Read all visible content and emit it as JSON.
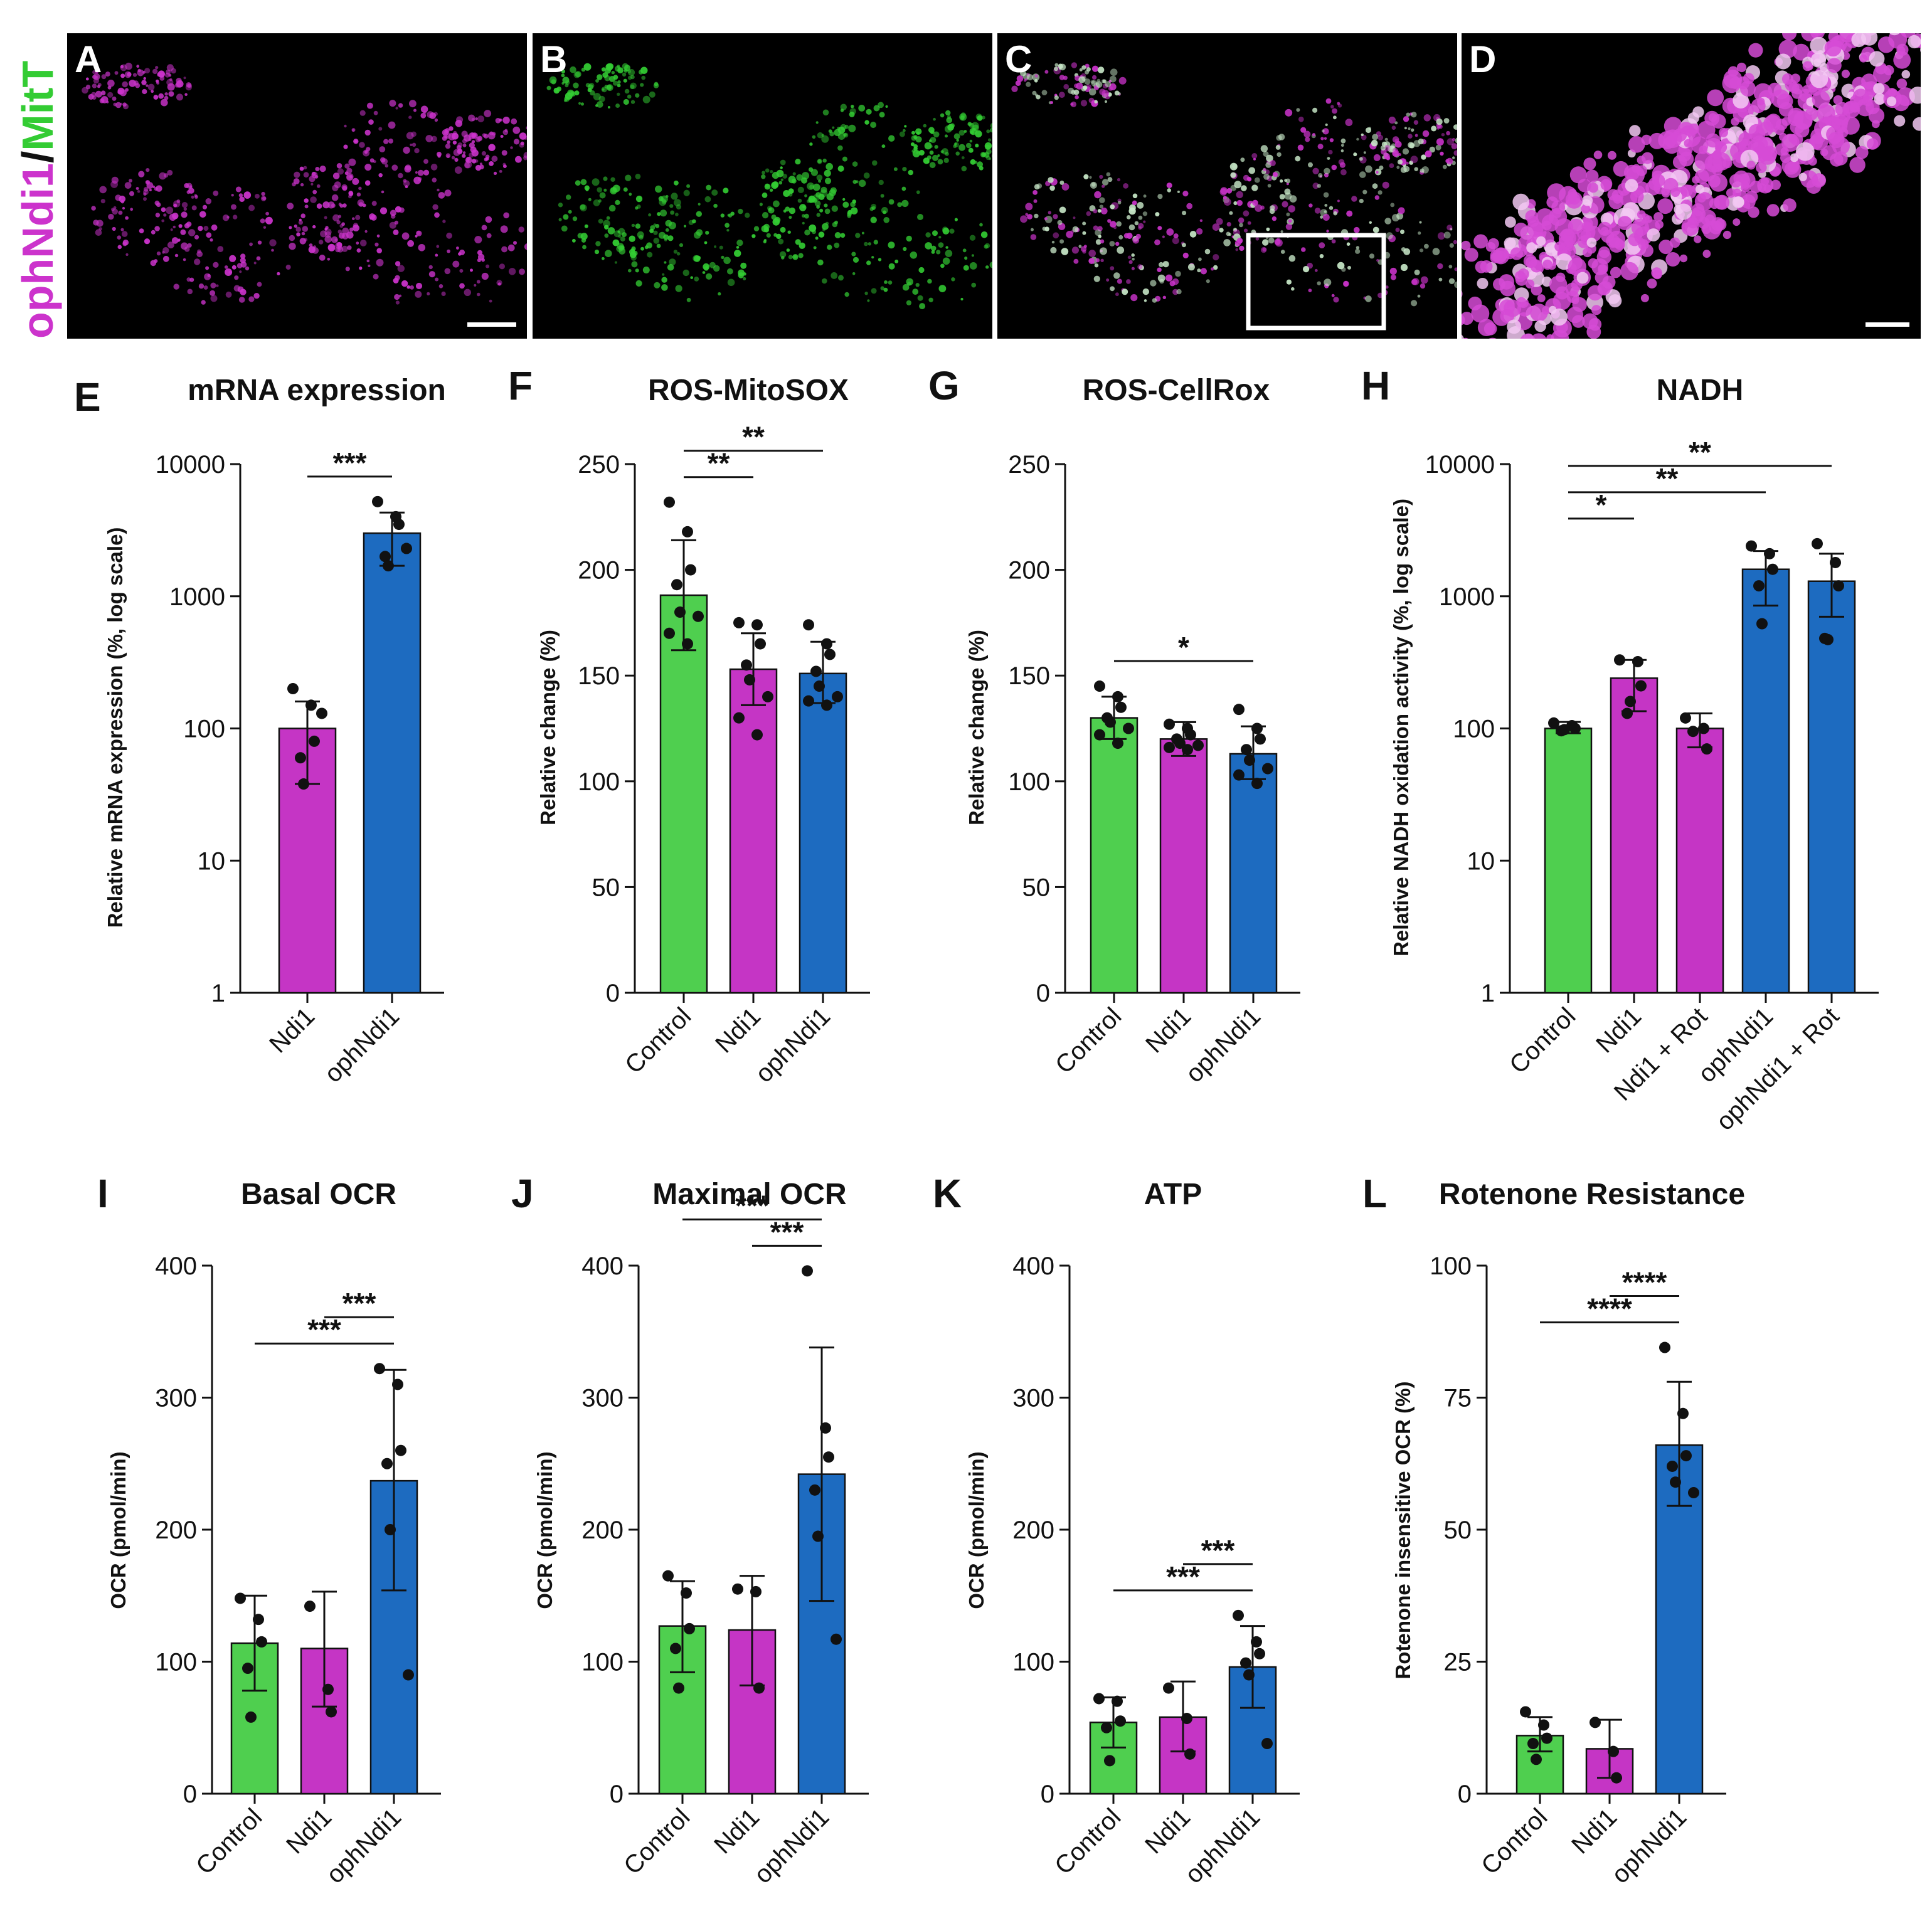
{
  "colors": {
    "control": "#4fcf4f",
    "ndi1": "#c535c5",
    "ophndi1": "#1d6bc0",
    "text": "#111111",
    "magenta": "#cc33cc",
    "green": "#33cc33"
  },
  "micrographs": {
    "side_label_part1": "ophNdi1",
    "side_label_sep": "/",
    "side_label_part2": "MitT",
    "panels": [
      {
        "letter": "A",
        "channel": "magenta"
      },
      {
        "letter": "B",
        "channel": "green"
      },
      {
        "letter": "C",
        "channel": "merge"
      },
      {
        "letter": "D",
        "channel": "zoom"
      }
    ]
  },
  "chart_data": [
    {
      "panel": "E",
      "title": "mRNA expression",
      "type": "bar",
      "scale": "log",
      "ylabel": "Relative mRNA expression (%, log scale)",
      "ylim": [
        1,
        10000
      ],
      "yticks": [
        "1",
        "10",
        "100",
        "1000",
        "10000"
      ],
      "yticks_values": [
        1,
        10,
        100,
        1000,
        10000
      ],
      "categories": [
        "Ndi1",
        "ophNdi1"
      ],
      "colors": [
        "ndi1",
        "ophndi1"
      ],
      "values": [
        100,
        3000
      ],
      "errors_low": [
        38,
        1700
      ],
      "errors_high": [
        160,
        4300
      ],
      "points": [
        [
          200,
          150,
          80,
          60,
          38,
          130
        ],
        [
          5200,
          4000,
          3500,
          2000,
          1700,
          2300
        ]
      ],
      "significance": [
        {
          "from": 0,
          "to": 1,
          "label": "***"
        }
      ]
    },
    {
      "panel": "F",
      "title": "ROS-MitoSOX",
      "type": "bar",
      "scale": "linear",
      "ylabel": "Relative change (%)",
      "ylim": [
        0,
        250
      ],
      "yticks": [
        "0",
        "50",
        "100",
        "150",
        "200",
        "250"
      ],
      "yticks_values": [
        0,
        50,
        100,
        150,
        200,
        250
      ],
      "categories": [
        "Control",
        "Ndi1",
        "ophNdi1"
      ],
      "colors": [
        "control",
        "ndi1",
        "ophndi1"
      ],
      "values": [
        188,
        153,
        151
      ],
      "errors_low": [
        162,
        136,
        137
      ],
      "errors_high": [
        214,
        170,
        166
      ],
      "points": [
        [
          232,
          218,
          200,
          193,
          180,
          178,
          170,
          165
        ],
        [
          175,
          174,
          165,
          155,
          148,
          140,
          130,
          122
        ],
        [
          174,
          165,
          160,
          152,
          145,
          140,
          138,
          136
        ]
      ],
      "significance": [
        {
          "from": 0,
          "to": 1,
          "label": "**"
        },
        {
          "from": 0,
          "to": 2,
          "label": "**"
        }
      ]
    },
    {
      "panel": "G",
      "title": "ROS-CellRox",
      "type": "bar",
      "scale": "linear",
      "ylabel": "Relative change (%)",
      "ylim": [
        0,
        250
      ],
      "yticks": [
        "0",
        "50",
        "100",
        "150",
        "200",
        "250"
      ],
      "yticks_values": [
        0,
        50,
        100,
        150,
        200,
        250
      ],
      "categories": [
        "Control",
        "Ndi1",
        "ophNdi1"
      ],
      "colors": [
        "control",
        "ndi1",
        "ophndi1"
      ],
      "values": [
        130,
        120,
        113
      ],
      "errors_low": [
        120,
        112,
        101
      ],
      "errors_high": [
        140,
        128,
        126
      ],
      "points": [
        [
          145,
          140,
          135,
          130,
          128,
          125,
          122,
          118
        ],
        [
          127,
          125,
          122,
          120,
          118,
          117,
          116,
          115
        ],
        [
          134,
          125,
          120,
          115,
          110,
          106,
          103,
          99
        ]
      ],
      "significance": [
        {
          "from": 0,
          "to": 2,
          "label": "*"
        }
      ]
    },
    {
      "panel": "H",
      "title": "NADH",
      "type": "bar",
      "scale": "log",
      "ylabel": "Relative NADH oxidation activity (%, log scale)",
      "ylim": [
        1,
        10000
      ],
      "yticks": [
        "1",
        "10",
        "100",
        "1000",
        "10000"
      ],
      "yticks_values": [
        1,
        10,
        100,
        1000,
        10000
      ],
      "categories": [
        "Control",
        "Ndi1",
        "Ndi1 + Rot",
        "ophNdi1",
        "ophNdi1 + Rot"
      ],
      "colors": [
        "control",
        "ndi1",
        "ndi1",
        "ophndi1",
        "ophndi1"
      ],
      "values": [
        100,
        240,
        100,
        1600,
        1300
      ],
      "errors_low": [
        92,
        135,
        72,
        850,
        700
      ],
      "errors_high": [
        112,
        330,
        130,
        2200,
        2100
      ],
      "points": [
        [
          110,
          105,
          100,
          96,
          98
        ],
        [
          330,
          320,
          210,
          130,
          160
        ],
        [
          120,
          100,
          70,
          95
        ],
        [
          2400,
          2100,
          1600,
          1200,
          620
        ],
        [
          2500,
          1800,
          1200,
          480,
          470
        ]
      ],
      "significance": [
        {
          "from": 0,
          "to": 1,
          "label": "*"
        },
        {
          "from": 0,
          "to": 3,
          "label": "**"
        },
        {
          "from": 0,
          "to": 4,
          "label": "**"
        }
      ]
    },
    {
      "panel": "I",
      "title": "Basal OCR",
      "type": "bar",
      "scale": "linear",
      "ylabel": "OCR (pmol/min)",
      "ylim": [
        0,
        400
      ],
      "yticks": [
        "0",
        "100",
        "200",
        "300",
        "400"
      ],
      "yticks_values": [
        0,
        100,
        200,
        300,
        400
      ],
      "categories": [
        "Control",
        "Ndi1",
        "ophNdi1"
      ],
      "colors": [
        "control",
        "ndi1",
        "ophndi1"
      ],
      "values": [
        114,
        110,
        237
      ],
      "errors_low": [
        78,
        66,
        154
      ],
      "errors_high": [
        150,
        153,
        321
      ],
      "points": [
        [
          148,
          132,
          115,
          95,
          58
        ],
        [
          142,
          79,
          62
        ],
        [
          322,
          310,
          260,
          250,
          200,
          90
        ]
      ],
      "significance": [
        {
          "from": 0,
          "to": 2,
          "label": "***"
        },
        {
          "from": 1,
          "to": 2,
          "label": "***"
        }
      ]
    },
    {
      "panel": "J",
      "title": "Maximal OCR",
      "type": "bar",
      "scale": "linear",
      "ylabel": "OCR (pmol/min)",
      "ylim": [
        0,
        400
      ],
      "yticks": [
        "0",
        "100",
        "200",
        "300",
        "400"
      ],
      "yticks_values": [
        0,
        100,
        200,
        300,
        400
      ],
      "categories": [
        "Control",
        "Ndi1",
        "ophNdi1"
      ],
      "colors": [
        "control",
        "ndi1",
        "ophndi1"
      ],
      "values": [
        127,
        124,
        242
      ],
      "errors_low": [
        92,
        82,
        146
      ],
      "errors_high": [
        161,
        165,
        338
      ],
      "points": [
        [
          165,
          152,
          125,
          110,
          80
        ],
        [
          155,
          153,
          80
        ],
        [
          396,
          277,
          255,
          230,
          195,
          117
        ]
      ],
      "significance": [
        {
          "from": 1,
          "to": 2,
          "label": "***"
        },
        {
          "from": 0,
          "to": 2,
          "label": "***"
        }
      ]
    },
    {
      "panel": "K",
      "title": "ATP",
      "type": "bar",
      "scale": "linear",
      "ylabel": "OCR (pmol/min)",
      "ylim": [
        0,
        400
      ],
      "yticks": [
        "0",
        "100",
        "200",
        "300",
        "400"
      ],
      "yticks_values": [
        0,
        100,
        200,
        300,
        400
      ],
      "categories": [
        "Control",
        "Ndi1",
        "ophNdi1"
      ],
      "colors": [
        "control",
        "ndi1",
        "ophndi1"
      ],
      "values": [
        54,
        58,
        96
      ],
      "errors_low": [
        35,
        32,
        65
      ],
      "errors_high": [
        73,
        85,
        127
      ],
      "points": [
        [
          72,
          70,
          55,
          50,
          25
        ],
        [
          80,
          57,
          30
        ],
        [
          135,
          115,
          106,
          99,
          90,
          38
        ]
      ],
      "significance": [
        {
          "from": 0,
          "to": 2,
          "label": "***"
        },
        {
          "from": 1,
          "to": 2,
          "label": "***"
        }
      ]
    },
    {
      "panel": "L",
      "title": "Rotenone Resistance",
      "type": "bar",
      "scale": "linear",
      "ylabel": "Rotenone insensitive OCR (%)",
      "ylim": [
        0,
        100
      ],
      "yticks": [
        "0",
        "25",
        "50",
        "75",
        "100"
      ],
      "yticks_values": [
        0,
        25,
        50,
        75,
        100
      ],
      "categories": [
        "Control",
        "Ndi1",
        "ophNdi1"
      ],
      "colors": [
        "control",
        "ndi1",
        "ophndi1"
      ],
      "values": [
        11,
        8.5,
        66
      ],
      "errors_low": [
        8,
        3,
        54.5
      ],
      "errors_high": [
        14.5,
        14,
        78
      ],
      "points": [
        [
          15.5,
          13,
          10.5,
          9.5,
          6.5
        ],
        [
          13.5,
          8,
          3
        ],
        [
          84.5,
          72,
          64,
          62,
          59,
          57
        ]
      ],
      "significance": [
        {
          "from": 0,
          "to": 2,
          "label": "****"
        },
        {
          "from": 1,
          "to": 2,
          "label": "****"
        }
      ]
    }
  ]
}
